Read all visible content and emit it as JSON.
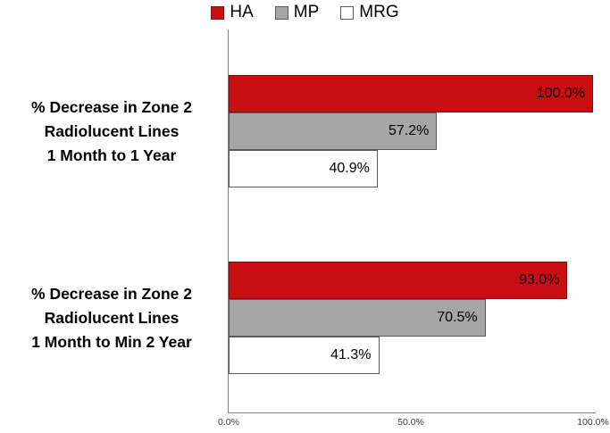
{
  "figure": {
    "background": "#FFFFFF",
    "axis_color": "#808080",
    "tick_label_color": "#404040",
    "data_label_color": "#000000"
  },
  "chart_data": {
    "type": "bar",
    "orientation": "horizontal",
    "title": "",
    "xlabel": "",
    "ylabel": "",
    "grid": false,
    "legend_position": "top",
    "xlim": [
      0,
      100
    ],
    "categories": [
      "% Decrease in Zone 2\nRadiolucent Lines\n1 Month to 1 Year",
      "% Decrease in Zone 2\nRadiolucent Lines\n1 Month to Min 2 Year"
    ],
    "series": [
      {
        "name": "HA",
        "color": "#C90E12",
        "border_color": "#7B1113",
        "values": [
          100.0,
          93.0
        ],
        "data_labels": [
          "100.0%",
          "93.0%"
        ]
      },
      {
        "name": "MP",
        "color": "#A6A6A6",
        "border_color": "#595959",
        "values": [
          57.2,
          70.5
        ],
        "data_labels": [
          "57.2%",
          "70.5%"
        ]
      },
      {
        "name": "MRG",
        "color": "#FFFFFF",
        "border_color": "#595959",
        "values": [
          40.9,
          41.3
        ],
        "data_labels": [
          "40.9%",
          "41.3%"
        ]
      }
    ],
    "x_ticks": [
      {
        "label": "0.0%",
        "value": 0
      },
      {
        "label": "50.0%",
        "value": 50
      },
      {
        "label": "100.0%",
        "value": 100
      }
    ]
  }
}
